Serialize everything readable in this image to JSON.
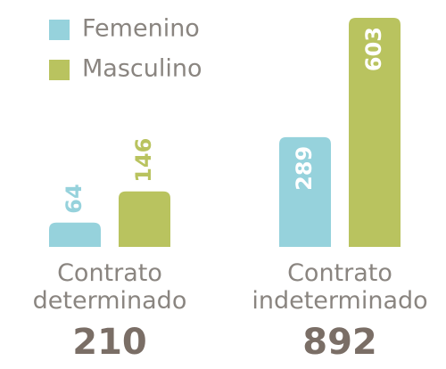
{
  "chart_data": {
    "type": "bar",
    "categories": [
      "Contrato determinado",
      "Contrato indeterminado"
    ],
    "totals": [
      210,
      892
    ],
    "series": [
      {
        "name": "Femenino",
        "color": "#96d2dc",
        "values": [
          64,
          289
        ]
      },
      {
        "name": "Masculino",
        "color": "#b9c35f",
        "values": [
          146,
          603
        ]
      }
    ],
    "legend": "top-left"
  }
}
